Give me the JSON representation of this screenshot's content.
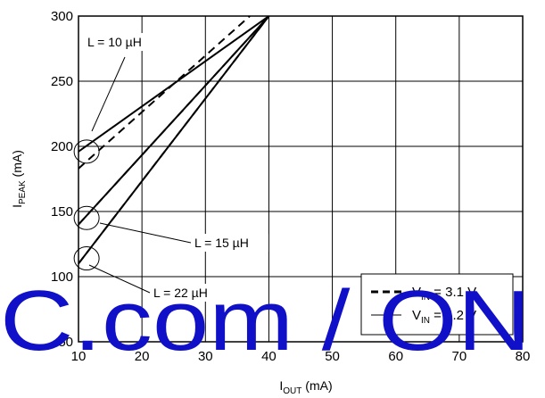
{
  "chart_data": {
    "type": "line",
    "xlabel": {
      "main": "I",
      "sub": "OUT",
      "rest": " (mA)"
    },
    "ylabel": {
      "main": "I",
      "sub": "PEAK",
      "rest": " (mA)"
    },
    "xlim": [
      10,
      80
    ],
    "ylim": [
      50,
      300
    ],
    "xticks": [
      "10",
      "20",
      "30",
      "40",
      "50",
      "60",
      "70",
      "80"
    ],
    "yticks": [
      "50",
      "100",
      "150",
      "200",
      "250",
      "300"
    ],
    "grid": true,
    "series": [
      {
        "group": "L = 10 µH",
        "vin": "3.1 V",
        "style": "dashed",
        "x": [
          10,
          37
        ],
        "y": [
          183,
          300
        ]
      },
      {
        "group": "L = 10 µH",
        "vin": "4.2 V",
        "style": "solid",
        "x": [
          10,
          40
        ],
        "y": [
          196,
          300
        ]
      },
      {
        "group": "L = 15 µH",
        "vin": "3.1 V",
        "style": "dashed",
        "x": [
          10,
          40
        ],
        "y": [
          140,
          300
        ]
      },
      {
        "group": "L = 15 µH",
        "vin": "4.2 V",
        "style": "solid",
        "x": [
          10,
          40
        ],
        "y": [
          140,
          300
        ]
      },
      {
        "group": "L = 22 µH",
        "vin": "3.1 V",
        "style": "dashed",
        "x": [
          10,
          40
        ],
        "y": [
          110,
          300
        ]
      },
      {
        "group": "L = 22 µH",
        "vin": "4.2 V",
        "style": "solid",
        "x": [
          10,
          40
        ],
        "y": [
          110,
          300
        ]
      }
    ],
    "annotations": [
      {
        "text": "L = 10 µH",
        "target": [
          11,
          196
        ]
      },
      {
        "text": "L = 15 µH",
        "target": [
          11,
          145
        ]
      },
      {
        "text": "L = 22 µH",
        "target": [
          11,
          114
        ]
      }
    ],
    "legend": {
      "placement": "lower-right",
      "entries": [
        {
          "main": "V",
          "sub": "IN",
          "rest": " = 3.1 V",
          "style": "dashed"
        },
        {
          "main": "V",
          "sub": "IN",
          "rest": " = 4.2 V",
          "style": "solid"
        }
      ]
    }
  },
  "watermark": "C.com / ON"
}
